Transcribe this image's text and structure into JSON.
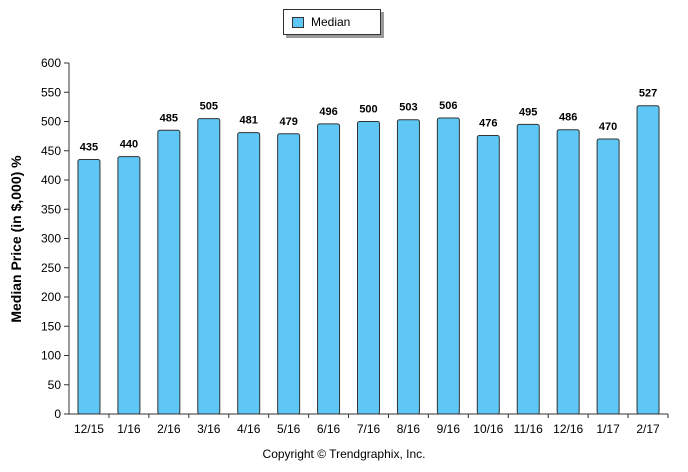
{
  "chart_data": {
    "type": "bar",
    "categories": [
      "12/15",
      "1/16",
      "2/16",
      "3/16",
      "4/16",
      "5/16",
      "6/16",
      "7/16",
      "8/16",
      "9/16",
      "10/16",
      "11/16",
      "12/16",
      "1/17",
      "2/17"
    ],
    "series": [
      {
        "name": "Median",
        "values": [
          435,
          440,
          485,
          505,
          481,
          479,
          496,
          500,
          503,
          506,
          476,
          495,
          486,
          470,
          527
        ]
      }
    ],
    "ylabel": "Median Price (in $,000) %",
    "xlabel": "",
    "ylim": [
      0,
      600
    ],
    "yticks": [
      0,
      50,
      100,
      150,
      200,
      250,
      300,
      350,
      400,
      450,
      500,
      550,
      600
    ],
    "grid": false,
    "legend_position": "top-center",
    "bar_color": "#5ec7f5",
    "bar_outline_color": "#333333"
  },
  "footer": {
    "copyright": "Copyright © Trendgraphix, Inc."
  }
}
